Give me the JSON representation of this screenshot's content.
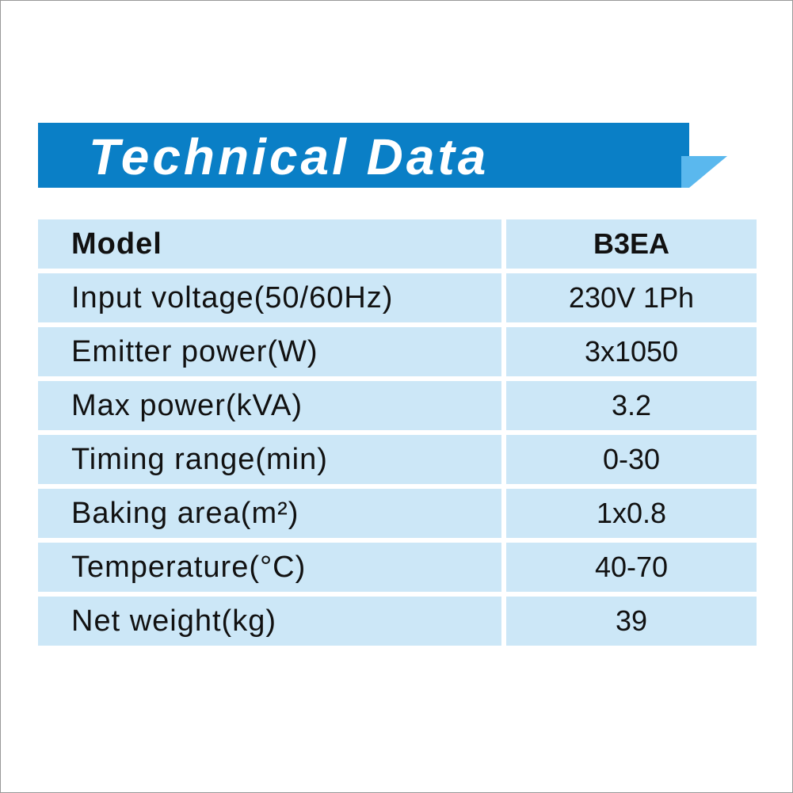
{
  "header": {
    "title": "Technical Data"
  },
  "table": {
    "rows": [
      [
        "Model",
        "B3EA"
      ],
      [
        "Input voltage(50/60Hz)",
        "230V 1Ph"
      ],
      [
        "Emitter power(W)",
        "3x1050"
      ],
      [
        "Max power(kVA)",
        "3.2"
      ],
      [
        "Timing range(min)",
        "0-30"
      ],
      [
        "Baking area(m²)",
        "1x0.8"
      ],
      [
        "Temperature(°C)",
        "40-70"
      ],
      [
        "Net weight(kg)",
        "39"
      ]
    ]
  }
}
